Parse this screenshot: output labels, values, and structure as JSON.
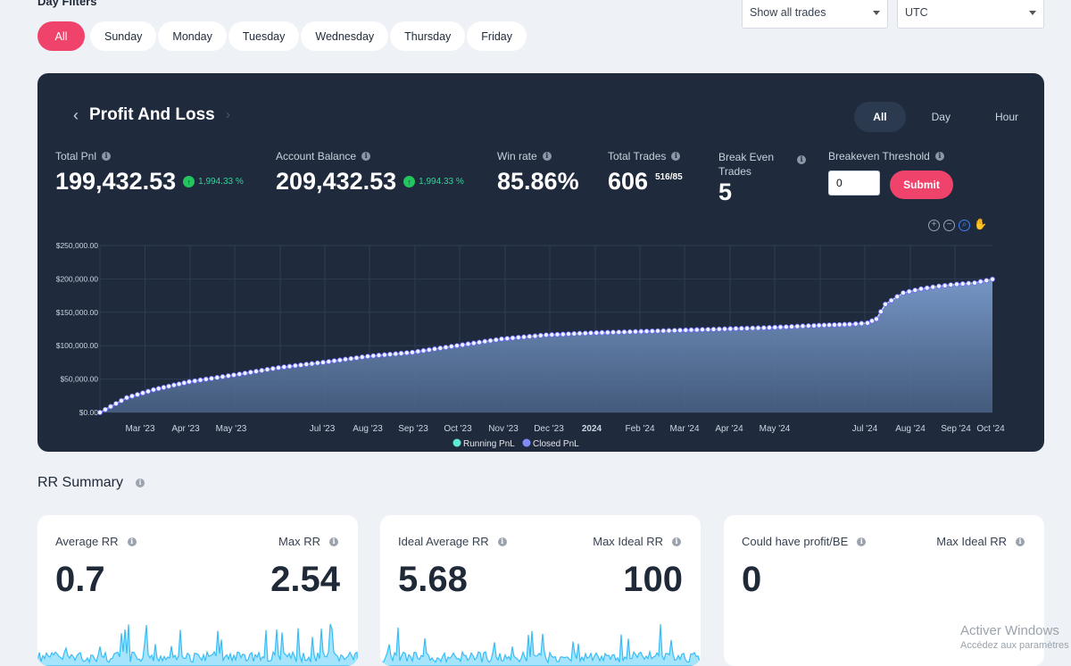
{
  "filters": {
    "title": "Day Filters",
    "days": [
      "All",
      "Sunday",
      "Monday",
      "Tuesday",
      "Wednesday",
      "Thursday",
      "Friday"
    ],
    "active_day": "All",
    "trade_select": "Show all trades",
    "tz_select": "UTC"
  },
  "pnl": {
    "title": "Profit And Loss",
    "ranges": [
      "All",
      "Day",
      "Hour"
    ],
    "active_range": "All",
    "total_pnl_label": "Total Pnl",
    "total_pnl": "199,432.53",
    "total_pnl_pct": "1,994.33 %",
    "account_balance_label": "Account Balance",
    "account_balance": "209,432.53",
    "account_balance_pct": "1,994.33 %",
    "win_rate_label": "Win rate",
    "win_rate": "85.86%",
    "total_trades_label": "Total Trades",
    "total_trades": "606",
    "total_trades_split": "516/85",
    "break_even_label_1": "Break Even",
    "break_even_label_2": "Trades",
    "break_even": "5",
    "threshold_label": "Breakeven Threshold",
    "threshold_value": "0",
    "submit_label": "Submit",
    "legend": [
      "Running PnL",
      "Closed PnL"
    ]
  },
  "chart_data": {
    "type": "area",
    "title": "Profit And Loss",
    "y_ticks": [
      "$250,000.00",
      "$200,000.00",
      "$150,000.00",
      "$100,000.00",
      "$50,000.00",
      "$0.00"
    ],
    "ylim": [
      0,
      250000
    ],
    "x_ticks": [
      "Mar '23",
      "Apr '23",
      "May '23",
      "Jul '23",
      "Aug '23",
      "Sep '23",
      "Oct '23",
      "Nov '23",
      "Dec '23",
      "2024",
      "Feb '24",
      "Mar '24",
      "Apr '24",
      "May '24",
      "Jul '24",
      "Aug '24",
      "Sep '24",
      "Oct '24"
    ],
    "x_tick_pos": [
      0.045,
      0.096,
      0.147,
      0.249,
      0.3,
      0.351,
      0.401,
      0.452,
      0.503,
      0.551,
      0.605,
      0.655,
      0.705,
      0.756,
      0.857,
      0.908,
      0.959,
      0.998
    ],
    "x_grid": [
      0.0,
      0.0505,
      0.101,
      0.151,
      0.202,
      0.252,
      0.302,
      0.353,
      0.403,
      0.454,
      0.504,
      0.555,
      0.605,
      0.655,
      0.706,
      0.756,
      0.807,
      0.857,
      0.908,
      0.958
    ],
    "series": [
      {
        "name": "Closed PnL",
        "x": [
          0.0,
          0.03,
          0.06,
          0.1,
          0.15,
          0.2,
          0.25,
          0.3,
          0.35,
          0.4,
          0.45,
          0.5,
          0.55,
          0.6,
          0.65,
          0.7,
          0.75,
          0.8,
          0.84,
          0.86,
          0.87,
          0.88,
          0.9,
          0.92,
          0.94,
          0.96,
          0.98,
          1.0
        ],
        "values": [
          0,
          22000,
          34000,
          46000,
          56000,
          67000,
          75000,
          84000,
          90000,
          100000,
          110000,
          116000,
          119000,
          121000,
          123000,
          125000,
          127000,
          130000,
          132000,
          134000,
          140000,
          162000,
          179000,
          185000,
          189000,
          192000,
          194000,
          199432
        ]
      }
    ]
  },
  "rr": {
    "title": "RR Summary",
    "cards": [
      {
        "left_label": "Average RR",
        "left_value": "0.7",
        "right_label": "Max RR",
        "right_value": "2.54"
      },
      {
        "left_label": "Ideal Average RR",
        "left_value": "5.68",
        "right_label": "Max Ideal RR",
        "right_value": "100"
      },
      {
        "left_label": "Could have profit/BE",
        "left_value": "0",
        "right_label": "Max Ideal RR",
        "right_value": ""
      }
    ]
  },
  "watermark": {
    "line1": "Activer Windows",
    "line2": "Accédez aux paramètres"
  },
  "colors": {
    "accent": "#f0436b",
    "card_dark": "#1f2a3d",
    "area_fill": "#6b8bb8",
    "point": "#e8ecff",
    "sparkline": "#38bdf8",
    "positive": "#22c55e"
  }
}
